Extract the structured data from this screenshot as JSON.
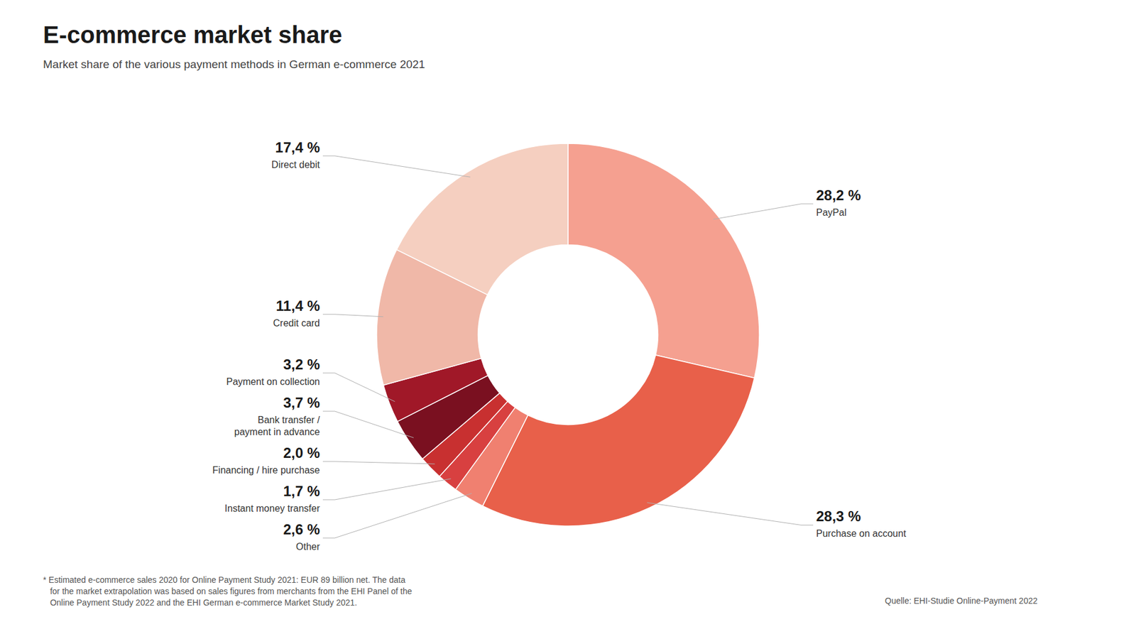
{
  "chart_data": {
    "type": "donut",
    "title": "E-commerce market share",
    "subtitle": "Market share of the various payment methods in German e-commerce 2021",
    "annotations": [
      "* Estimated e-commerce sales 2020 for Online Payment Study 2021: EUR 89 billion net. The data\n   for the market extrapolation was based on sales figures from merchants from the EHI Panel of the\n   Online Payment Study 2022 and the EHI German e-commerce Market Study 2021.",
      "Quelle: EHI-Studie Online-Payment 2022"
    ],
    "categories": [
      "PayPal",
      "Purchase on account",
      "Other",
      "Instant money transfer",
      "Financing / hire purchase",
      "Bank transfer /\npayment in advance",
      "Payment on collection",
      "Credit card",
      "Direct debit"
    ],
    "values": [
      28.2,
      28.3,
      2.6,
      1.7,
      2.0,
      3.7,
      3.2,
      11.4,
      17.4
    ],
    "value_labels": [
      "28,2 %",
      "28,3 %",
      "2,6 %",
      "1,7 %",
      "2,0 %",
      "3,7 %",
      "3,2 %",
      "11,4 %",
      "17,4 %"
    ],
    "colors": [
      "#f5a090",
      "#e8604a",
      "#f08070",
      "#d84040",
      "#c83030",
      "#7a1020",
      "#a01828",
      "#f0b8a8",
      "#f5cfc0"
    ],
    "data_labels": true
  }
}
